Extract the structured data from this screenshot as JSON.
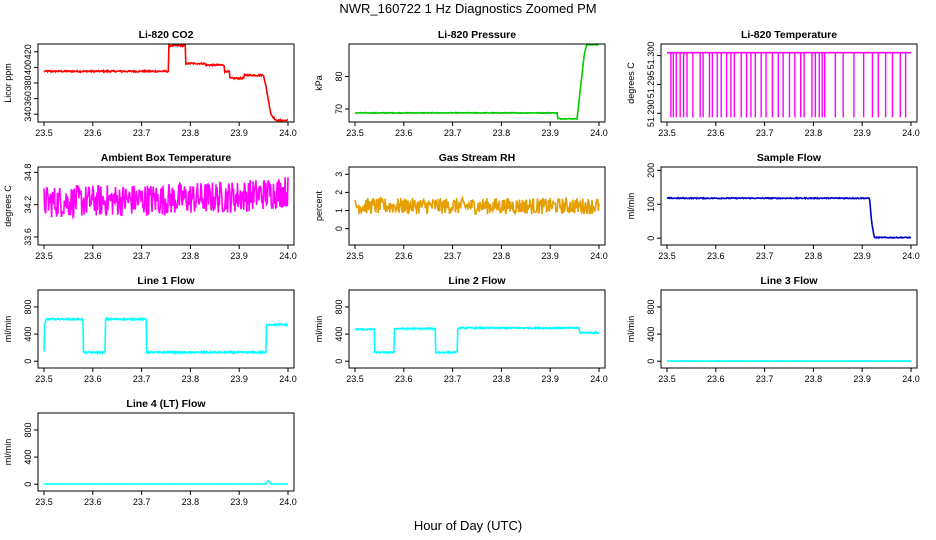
{
  "title": "NWR_160722  1 Hz Diagnostics Zoomed PM",
  "x_axis_title": "Hour of Day (UTC)",
  "chart_data": [
    {
      "id": "co2",
      "type": "line",
      "title": "Li-820 CO2",
      "ylabel": "Licor ppm",
      "color": "#ff0000",
      "noise": 1.0,
      "xlim": [
        23.5,
        24.0
      ],
      "ylim": [
        330,
        430
      ],
      "yticks": [
        "340",
        "360",
        "380",
        "400",
        "420"
      ],
      "ytick_values": [
        340,
        360,
        380,
        400,
        420
      ],
      "xticks": [
        "23.5",
        "23.6",
        "23.7",
        "23.8",
        "23.9",
        "24.0"
      ],
      "xtick_values": [
        23.5,
        23.6,
        23.7,
        23.8,
        23.9,
        24.0
      ],
      "series": [
        {
          "name": "CO2",
          "x": [
            23.5,
            23.755,
            23.755,
            23.79,
            23.79,
            23.83,
            23.83,
            23.87,
            23.87,
            23.88,
            23.88,
            23.91,
            23.91,
            23.95,
            23.955,
            23.965,
            23.975,
            24.0
          ],
          "y": [
            395,
            395,
            428,
            428,
            405,
            405,
            403,
            403,
            395,
            395,
            386,
            386,
            390,
            390,
            375,
            340,
            332,
            332
          ]
        }
      ]
    },
    {
      "id": "pressure",
      "type": "line",
      "title": "Li-820 Pressure",
      "ylabel": "kPa",
      "color": "#00cc00",
      "noise": 0.1,
      "xlim": [
        23.5,
        24.0
      ],
      "ylim": [
        66,
        90
      ],
      "yticks": [
        "70",
        "80"
      ],
      "ytick_values": [
        70,
        80
      ],
      "xticks": [
        "23.5",
        "23.6",
        "23.7",
        "23.8",
        "23.9",
        "24.0"
      ],
      "xtick_values": [
        23.5,
        23.6,
        23.7,
        23.8,
        23.9,
        24.0
      ],
      "series": [
        {
          "name": "Pressure",
          "x": [
            23.5,
            23.915,
            23.915,
            23.955,
            23.97,
            23.975,
            24.0
          ],
          "y": [
            68.8,
            68.8,
            67.0,
            67.0,
            87.0,
            89.8,
            89.8
          ]
        }
      ]
    },
    {
      "id": "licor-temp",
      "type": "line",
      "title": "Li-820 Temperature",
      "ylabel": "degrees C",
      "color": "#ff00ff",
      "noise": 0,
      "xlim": [
        23.5,
        24.0
      ],
      "ylim": [
        51.2885,
        51.302
      ],
      "yticks": [
        "51.290",
        "51.295",
        "51.300"
      ],
      "ytick_values": [
        51.29,
        51.295,
        51.3
      ],
      "xticks": [
        "23.5",
        "23.6",
        "23.7",
        "23.8",
        "23.9",
        "24.0"
      ],
      "xtick_values": [
        23.5,
        23.6,
        23.7,
        23.8,
        23.9,
        24.0
      ],
      "series": [
        {
          "name": "Temperature",
          "x": [
            23.5,
            24.0
          ],
          "y": [
            51.3005,
            51.3005
          ]
        }
      ],
      "spikes": {
        "low": 51.2893,
        "high": 51.3005,
        "x": [
          23.508,
          23.513,
          23.519,
          23.527,
          23.534,
          23.541,
          23.553,
          23.568,
          23.574,
          23.587,
          23.593,
          23.603,
          23.611,
          23.622,
          23.631,
          23.638,
          23.652,
          23.663,
          23.672,
          23.681,
          23.693,
          23.703,
          23.716,
          23.728,
          23.738,
          23.751,
          23.762,
          23.774,
          23.781,
          23.797,
          23.804,
          23.812,
          23.818,
          23.823,
          23.845,
          23.861,
          23.883,
          23.903,
          23.921,
          23.933,
          23.948,
          23.962,
          23.978,
          23.989
        ]
      }
    },
    {
      "id": "box-temp",
      "type": "line",
      "title": "Ambient Box Temperature",
      "ylabel": "degrees C",
      "color": "#ff00ff",
      "noise": 0.3,
      "xlim": [
        23.5,
        24.0
      ],
      "ylim": [
        33.45,
        34.9
      ],
      "yticks": [
        "33.6",
        "34.2",
        "34.8"
      ],
      "ytick_values": [
        33.6,
        34.2,
        34.8
      ],
      "xticks": [
        "23.5",
        "23.6",
        "23.7",
        "23.8",
        "23.9",
        "24.0"
      ],
      "xtick_values": [
        23.5,
        23.6,
        23.7,
        23.8,
        23.9,
        24.0
      ],
      "series": [
        {
          "name": "Box temperature",
          "x": [
            23.5,
            23.75,
            23.9,
            24.0
          ],
          "y": [
            34.25,
            34.3,
            34.35,
            34.45
          ]
        }
      ]
    },
    {
      "id": "rh",
      "type": "line",
      "title": "Gas Stream RH",
      "ylabel": "percent",
      "color": "#e69f00",
      "noise": 0.45,
      "xlim": [
        23.5,
        24.0
      ],
      "ylim": [
        -0.9,
        3.4
      ],
      "yticks": [
        "0",
        "1",
        "2",
        "3"
      ],
      "ytick_values": [
        0,
        1,
        2,
        3
      ],
      "xticks": [
        "23.5",
        "23.6",
        "23.7",
        "23.8",
        "23.9",
        "24.0"
      ],
      "xtick_values": [
        23.5,
        23.6,
        23.7,
        23.8,
        23.9,
        24.0
      ],
      "series": [
        {
          "name": "RH",
          "x": [
            23.5,
            24.0
          ],
          "y": [
            1.25,
            1.25
          ]
        }
      ]
    },
    {
      "id": "sample-flow",
      "type": "line",
      "title": "Sample Flow",
      "ylabel": "ml/min",
      "color": "#0000cc",
      "noise": 1.5,
      "xlim": [
        23.5,
        24.0
      ],
      "ylim": [
        -20,
        210
      ],
      "yticks": [
        "0",
        "100",
        "200"
      ],
      "ytick_values": [
        0,
        100,
        200
      ],
      "xticks": [
        "23.5",
        "23.6",
        "23.7",
        "23.8",
        "23.9",
        "24.0"
      ],
      "xtick_values": [
        23.5,
        23.6,
        23.7,
        23.8,
        23.9,
        24.0
      ],
      "series": [
        {
          "name": "Sample flow",
          "x": [
            23.5,
            23.915,
            23.92,
            23.925,
            24.0
          ],
          "y": [
            118,
            118,
            40,
            2,
            2
          ]
        }
      ]
    },
    {
      "id": "line1",
      "type": "line",
      "title": "Line 1 Flow",
      "ylabel": "ml/min",
      "color": "#00ffff",
      "noise": 12,
      "xlim": [
        23.5,
        24.0
      ],
      "ylim": [
        -100,
        1050
      ],
      "yticks": [
        "0",
        "400",
        "800"
      ],
      "ytick_values": [
        0,
        400,
        800
      ],
      "xticks": [
        "23.5",
        "23.6",
        "23.7",
        "23.8",
        "23.9",
        "24.0"
      ],
      "xtick_values": [
        23.5,
        23.6,
        23.7,
        23.8,
        23.9,
        24.0
      ],
      "series": [
        {
          "name": "Line 1",
          "x": [
            23.5,
            23.5,
            23.505,
            23.58,
            23.58,
            23.625,
            23.625,
            23.71,
            23.71,
            23.955,
            23.955,
            24.0
          ],
          "y": [
            130,
            520,
            620,
            620,
            130,
            130,
            620,
            620,
            130,
            130,
            540,
            540
          ]
        }
      ]
    },
    {
      "id": "line2",
      "type": "line",
      "title": "Line 2 Flow",
      "ylabel": "ml/min",
      "color": "#00ffff",
      "noise": 10,
      "xlim": [
        23.5,
        24.0
      ],
      "ylim": [
        -100,
        1050
      ],
      "yticks": [
        "0",
        "400",
        "800"
      ],
      "ytick_values": [
        0,
        400,
        800
      ],
      "xticks": [
        "23.5",
        "23.6",
        "23.7",
        "23.8",
        "23.9",
        "24.0"
      ],
      "xtick_values": [
        23.5,
        23.6,
        23.7,
        23.8,
        23.9,
        24.0
      ],
      "series": [
        {
          "name": "Line 2",
          "x": [
            23.5,
            23.54,
            23.54,
            23.58,
            23.58,
            23.665,
            23.665,
            23.71,
            23.71,
            23.96,
            23.96,
            24.0
          ],
          "y": [
            470,
            470,
            130,
            130,
            480,
            480,
            130,
            130,
            490,
            490,
            420,
            420
          ]
        }
      ]
    },
    {
      "id": "line3",
      "type": "line",
      "title": "Line 3 Flow",
      "ylabel": "ml/min",
      "color": "#00ffff",
      "noise": 2,
      "xlim": [
        23.5,
        24.0
      ],
      "ylim": [
        -100,
        1050
      ],
      "yticks": [
        "0",
        "400",
        "800"
      ],
      "ytick_values": [
        0,
        400,
        800
      ],
      "xticks": [
        "23.5",
        "23.6",
        "23.7",
        "23.8",
        "23.9",
        "24.0"
      ],
      "xtick_values": [
        23.5,
        23.6,
        23.7,
        23.8,
        23.9,
        24.0
      ],
      "series": [
        {
          "name": "Line 3",
          "x": [
            23.5,
            24.0
          ],
          "y": [
            3,
            3
          ]
        }
      ]
    },
    {
      "id": "line4",
      "type": "line",
      "title": "Line 4 (LT) Flow",
      "ylabel": "ml/min",
      "color": "#00ffff",
      "noise": 2,
      "xlim": [
        23.5,
        24.0
      ],
      "ylim": [
        -100,
        1050
      ],
      "yticks": [
        "0",
        "400",
        "800"
      ],
      "ytick_values": [
        0,
        400,
        800
      ],
      "xticks": [
        "23.5",
        "23.6",
        "23.7",
        "23.8",
        "23.9",
        "24.0"
      ],
      "xtick_values": [
        23.5,
        23.6,
        23.7,
        23.8,
        23.9,
        24.0
      ],
      "series": [
        {
          "name": "Line 4",
          "x": [
            23.5,
            23.955,
            23.96,
            23.965,
            24.0
          ],
          "y": [
            3,
            3,
            55,
            3,
            3
          ]
        }
      ]
    }
  ]
}
